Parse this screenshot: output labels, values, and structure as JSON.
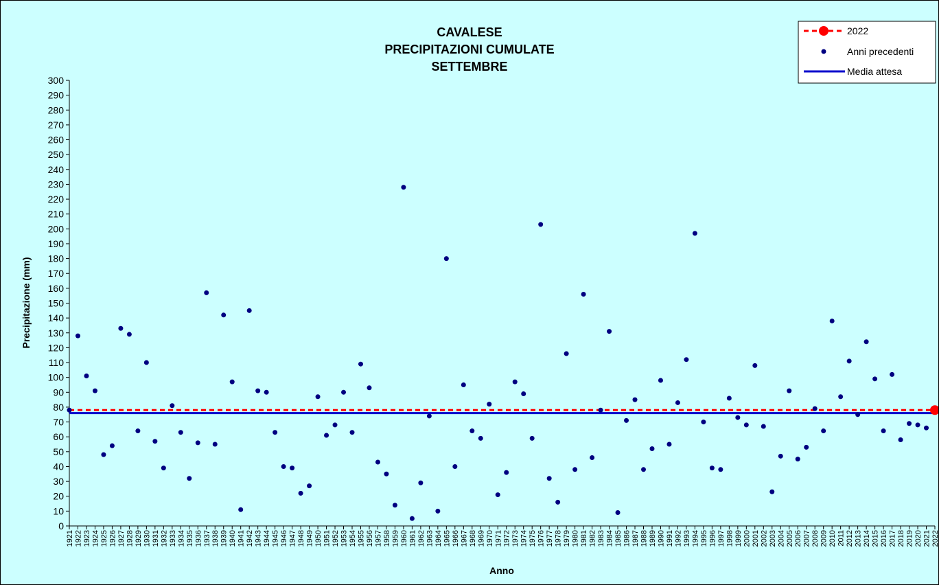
{
  "chart_data": {
    "type": "scatter",
    "title_lines": [
      "CAVALESE",
      "PRECIPITAZIONI CUMULATE",
      "SETTEMBRE"
    ],
    "xlabel": "Anno",
    "ylabel": "Precipitazione (mm)",
    "ylim": [
      0,
      300
    ],
    "ytick_step": 10,
    "grid": false,
    "legend_position": "top-right",
    "years": [
      1921,
      1922,
      1923,
      1924,
      1925,
      1926,
      1927,
      1928,
      1929,
      1930,
      1931,
      1932,
      1933,
      1934,
      1935,
      1936,
      1937,
      1938,
      1939,
      1940,
      1941,
      1942,
      1943,
      1944,
      1945,
      1946,
      1947,
      1948,
      1949,
      1950,
      1951,
      1952,
      1953,
      1954,
      1955,
      1956,
      1957,
      1958,
      1959,
      1960,
      1961,
      1962,
      1963,
      1964,
      1965,
      1966,
      1967,
      1968,
      1969,
      1970,
      1971,
      1972,
      1973,
      1974,
      1975,
      1976,
      1977,
      1978,
      1979,
      1980,
      1981,
      1982,
      1983,
      1984,
      1985,
      1986,
      1987,
      1988,
      1989,
      1990,
      1991,
      1992,
      1993,
      1994,
      1995,
      1996,
      1997,
      1998,
      1999,
      2000,
      2001,
      2002,
      2003,
      2004,
      2005,
      2006,
      2007,
      2008,
      2009,
      2010,
      2011,
      2012,
      2013,
      2014,
      2015,
      2016,
      2017,
      2018,
      2019,
      2020,
      2021,
      2022
    ],
    "series": [
      {
        "name": "Anni precedenti",
        "color": "#000080",
        "x": [
          1921,
          1922,
          1923,
          1924,
          1925,
          1926,
          1927,
          1928,
          1929,
          1930,
          1931,
          1932,
          1933,
          1934,
          1935,
          1936,
          1937,
          1938,
          1939,
          1940,
          1941,
          1942,
          1943,
          1944,
          1945,
          1946,
          1947,
          1948,
          1949,
          1950,
          1951,
          1952,
          1953,
          1954,
          1955,
          1956,
          1957,
          1958,
          1959,
          1960,
          1961,
          1962,
          1963,
          1964,
          1965,
          1966,
          1967,
          1968,
          1969,
          1970,
          1971,
          1972,
          1973,
          1974,
          1975,
          1976,
          1977,
          1978,
          1979,
          1980,
          1981,
          1982,
          1983,
          1984,
          1985,
          1986,
          1987,
          1988,
          1989,
          1990,
          1991,
          1992,
          1993,
          1994,
          1995,
          1996,
          1997,
          1998,
          1999,
          2000,
          2001,
          2002,
          2003,
          2004,
          2005,
          2006,
          2007,
          2008,
          2009,
          2010,
          2011,
          2012,
          2013,
          2014,
          2015,
          2016,
          2017,
          2018,
          2019,
          2020,
          2021
        ],
        "y": [
          78,
          128,
          101,
          91,
          48,
          54,
          133,
          129,
          64,
          110,
          57,
          39,
          81,
          63,
          32,
          56,
          157,
          55,
          142,
          97,
          11,
          145,
          91,
          90,
          63,
          40,
          39,
          22,
          27,
          87,
          61,
          68,
          90,
          63,
          109,
          93,
          43,
          35,
          14,
          228,
          5,
          29,
          74,
          10,
          180,
          40,
          95,
          64,
          59,
          82,
          21,
          36,
          97,
          89,
          59,
          203,
          32,
          16,
          116,
          38,
          156,
          46,
          78,
          131,
          9,
          71,
          85,
          38,
          52,
          98,
          55,
          83,
          112,
          197,
          70,
          39,
          38,
          86,
          73,
          68,
          108,
          67,
          23,
          47,
          91,
          45,
          53,
          79,
          64,
          138,
          87,
          111,
          75,
          124,
          99,
          64,
          102,
          58,
          69,
          68,
          66
        ]
      },
      {
        "name": "2022",
        "color": "#ff0000",
        "x": [
          2022
        ],
        "y": [
          78
        ]
      }
    ],
    "reference_lines": [
      {
        "name": "Media attesa",
        "color": "#0000cc",
        "value": 76
      }
    ]
  }
}
